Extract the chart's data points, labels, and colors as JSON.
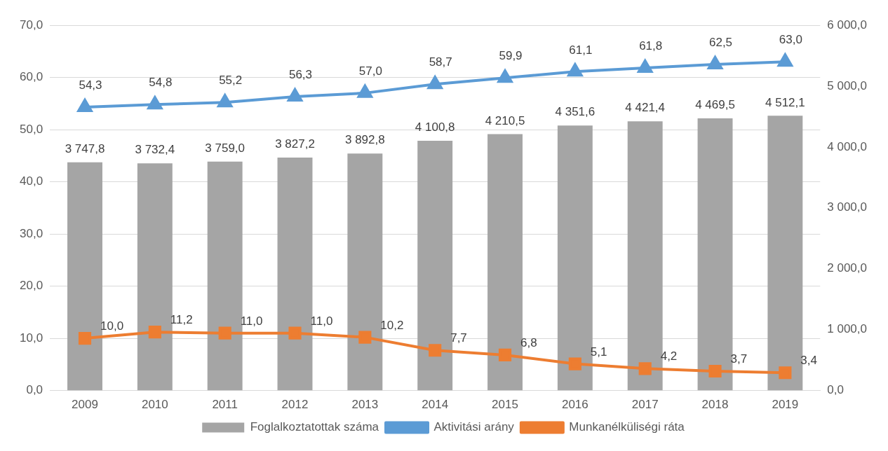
{
  "chart_data": {
    "type": "bar",
    "categories": [
      "2009",
      "2010",
      "2011",
      "2012",
      "2013",
      "2014",
      "2015",
      "2016",
      "2017",
      "2018",
      "2019"
    ],
    "series": [
      {
        "name": "Foglalkoztatottak száma",
        "axis": "y2",
        "color": "#a5a5a5",
        "values": [
          3747.8,
          3732.4,
          3759.0,
          3827.2,
          3892.8,
          4100.8,
          4210.5,
          4351.6,
          4421.4,
          4469.5,
          4512.1
        ],
        "value_labels": [
          "3 747,8",
          "3 732,4",
          "3 759,0",
          "3 827,2",
          "3 892,8",
          "4 100,8",
          "4 210,5",
          "4 351,6",
          "4 421,4",
          "4 469,5",
          "4 512,1"
        ]
      },
      {
        "name": "Aktivitási arány",
        "type": "line",
        "axis": "y",
        "marker": "triangle",
        "color": "#5b9bd5",
        "values": [
          54.3,
          54.8,
          55.2,
          56.3,
          57.0,
          58.7,
          59.9,
          61.1,
          61.8,
          62.5,
          63.0
        ],
        "value_labels": [
          "54,3",
          "54,8",
          "55,2",
          "56,3",
          "57,0",
          "58,7",
          "59,9",
          "61,1",
          "61,8",
          "62,5",
          "63,0"
        ]
      },
      {
        "name": "Munkanélküliségi ráta",
        "type": "line",
        "axis": "y",
        "marker": "square",
        "color": "#ed7d31",
        "values": [
          10.0,
          11.2,
          11.0,
          11.0,
          10.2,
          7.7,
          6.8,
          5.1,
          4.2,
          3.7,
          3.4
        ],
        "value_labels": [
          "10,0",
          "11,2",
          "11,0",
          "11,0",
          "10,2",
          "7,7",
          "6,8",
          "5,1",
          "4,2",
          "3,7",
          "3,4"
        ]
      }
    ],
    "ylim": [
      0,
      70
    ],
    "yticks": [
      {
        "value": 0,
        "label": "0,0"
      },
      {
        "value": 10,
        "label": "10,0"
      },
      {
        "value": 20,
        "label": "20,0"
      },
      {
        "value": 30,
        "label": "30,0"
      },
      {
        "value": 40,
        "label": "40,0"
      },
      {
        "value": 50,
        "label": "50,0"
      },
      {
        "value": 60,
        "label": "60,0"
      },
      {
        "value": 70,
        "label": "70,0"
      }
    ],
    "y2lim": [
      0,
      6000
    ],
    "y2ticks": [
      {
        "value": 0,
        "label": "0,0"
      },
      {
        "value": 1000,
        "label": "1 000,0"
      },
      {
        "value": 2000,
        "label": "2 000,0"
      },
      {
        "value": 3000,
        "label": "3 000,0"
      },
      {
        "value": 4000,
        "label": "4 000,0"
      },
      {
        "value": 5000,
        "label": "5 000,0"
      },
      {
        "value": 6000,
        "label": "6 000,0"
      }
    ],
    "grid": "y",
    "legend": "bottom"
  }
}
